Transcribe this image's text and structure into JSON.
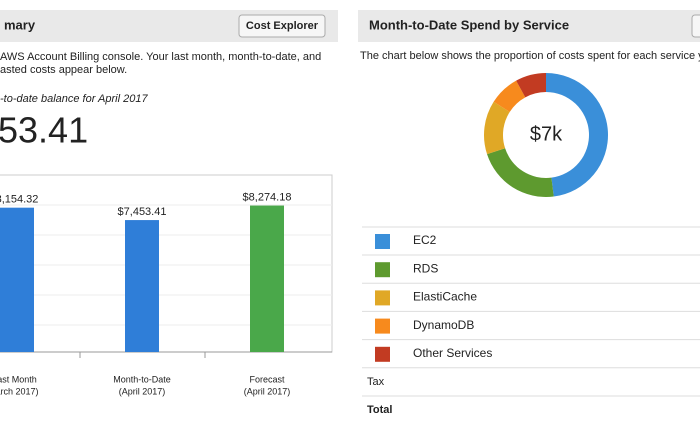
{
  "summary": {
    "title": "mary",
    "button": "Cost Explorer",
    "intro": [
      "AWS Account Billing console. Your last month, month-to-date, and",
      "asted costs appear below."
    ],
    "balance_label": "-to-date balance for April 2017",
    "balance": "53.41"
  },
  "chart_data": [
    {
      "type": "bar",
      "categories": [
        [
          "ast Month",
          "arch 2017)"
        ],
        [
          "Month-to-Date",
          "(April 2017)"
        ],
        [
          "Forecast",
          "(April 2017)"
        ]
      ],
      "values": [
        8154.32,
        7453.41,
        8274.18
      ],
      "value_labels": [
        "8,154.32",
        "$7,453.41",
        "$8,274.18"
      ],
      "colors": [
        "#2f7ed8",
        "#2f7ed8",
        "#4aa84a"
      ],
      "ylim": [
        0,
        10000
      ]
    },
    {
      "type": "donut",
      "title": "Month-to-Date Spend by Service",
      "subtitle": "The chart below shows the proportion of costs spent for each service yo",
      "center_label": "$7k",
      "series": [
        {
          "name": "EC2",
          "color": "#3a8fd9",
          "value": 48
        },
        {
          "name": "RDS",
          "color": "#5e9a2f",
          "value": 22
        },
        {
          "name": "ElastiCache",
          "color": "#e0a826",
          "value": 14
        },
        {
          "name": "DynamoDB",
          "color": "#f78a1d",
          "value": 8
        },
        {
          "name": "Other Services",
          "color": "#c23b22",
          "value": 8
        }
      ],
      "extra_rows": [
        "Tax",
        "Total"
      ]
    }
  ]
}
